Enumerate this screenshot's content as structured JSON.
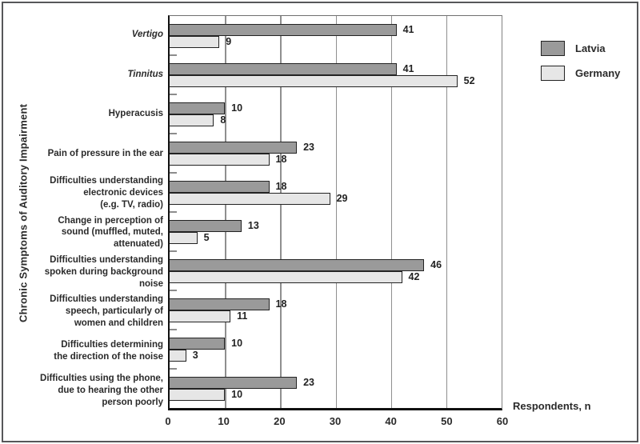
{
  "chart_data": {
    "type": "bar",
    "orientation": "horizontal",
    "xlabel": "Respondents, n",
    "ylabel": "Chronic Symptoms of Auditory Impairment",
    "xlim": [
      0,
      60
    ],
    "xticks": [
      0,
      10,
      20,
      30,
      40,
      50,
      60
    ],
    "grid": true,
    "legend_position": "top-right",
    "categories": [
      {
        "label": "Vertigo",
        "italic": true
      },
      {
        "label": "Tinnitus",
        "italic": true
      },
      {
        "label": "Hyperacusis",
        "italic": false
      },
      {
        "label": "Pain of pressure in the ear",
        "italic": false
      },
      {
        "label": "Difficulties understanding\nelectronic devices\n(e.g. TV, radio)",
        "italic": false
      },
      {
        "label": "Change in perception of\nsound (muffled, muted,\nattenuated)",
        "italic": false
      },
      {
        "label": "Difficulties understanding\nspoken during background\nnoise",
        "italic": false
      },
      {
        "label": "Difficulties understanding\nspeech, particularly of\nwomen and children",
        "italic": false
      },
      {
        "label": "Difficulties determining\nthe direction of the noise",
        "italic": false
      },
      {
        "label": "Difficulties using the phone,\ndue to hearing the other\nperson poorly",
        "italic": false
      }
    ],
    "series": [
      {
        "name": "Latvia",
        "color": "#9a9a9a",
        "values": [
          41,
          41,
          10,
          23,
          18,
          13,
          46,
          18,
          10,
          23
        ]
      },
      {
        "name": "Germany",
        "color": "#e6e6e6",
        "values": [
          9,
          52,
          8,
          18,
          29,
          5,
          42,
          11,
          3,
          10
        ]
      }
    ],
    "colors": {
      "bar_border": "#232323",
      "gridline": "#8f8f8f",
      "axis": "#111111",
      "frame": "#56575a",
      "text": "#2a2a2a"
    }
  }
}
